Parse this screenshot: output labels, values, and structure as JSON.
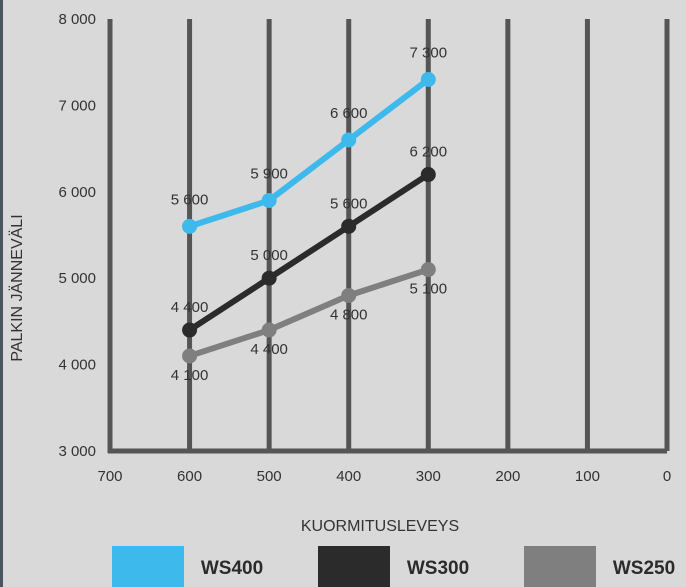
{
  "chart_data": {
    "type": "line",
    "xlabel": "KUORMITUSLEVEYS",
    "ylabel": "PALKIN JÄNNEVÄLI",
    "x_ticks": [
      700,
      600,
      500,
      400,
      300,
      200,
      100,
      0
    ],
    "y_ticks": [
      3000,
      4000,
      5000,
      6000,
      7000,
      8000
    ],
    "xlim": [
      700,
      0
    ],
    "ylim": [
      3000,
      8000
    ],
    "x_axis_reversed": true,
    "grid": "vertical",
    "legend_position": "bottom",
    "series": [
      {
        "name": "WS400",
        "color": "#3db9ec",
        "x": [
          600,
          500,
          400,
          300
        ],
        "values": [
          5600,
          5900,
          6600,
          7300
        ],
        "labels": [
          "5 600",
          "5 900",
          "6 600",
          "7 300"
        ]
      },
      {
        "name": "WS300",
        "color": "#2b2b2b",
        "x": [
          600,
          500,
          400,
          300
        ],
        "values": [
          4400,
          5000,
          5600,
          6200
        ],
        "labels": [
          "4 400",
          "5 000",
          "5 600",
          "6 200"
        ]
      },
      {
        "name": "WS250",
        "color": "#7f7f7f",
        "x": [
          600,
          500,
          400,
          300
        ],
        "values": [
          4100,
          4400,
          4800,
          5100
        ],
        "labels": [
          "4 100",
          "4 400",
          "4 800",
          "5 100"
        ]
      }
    ],
    "y_tick_labels": [
      "3 000",
      "4 000",
      "5 000",
      "6 000",
      "7 000",
      "8 000"
    ],
    "x_tick_labels": [
      "700",
      "600",
      "500",
      "400",
      "300",
      "200",
      "100",
      "0"
    ]
  }
}
